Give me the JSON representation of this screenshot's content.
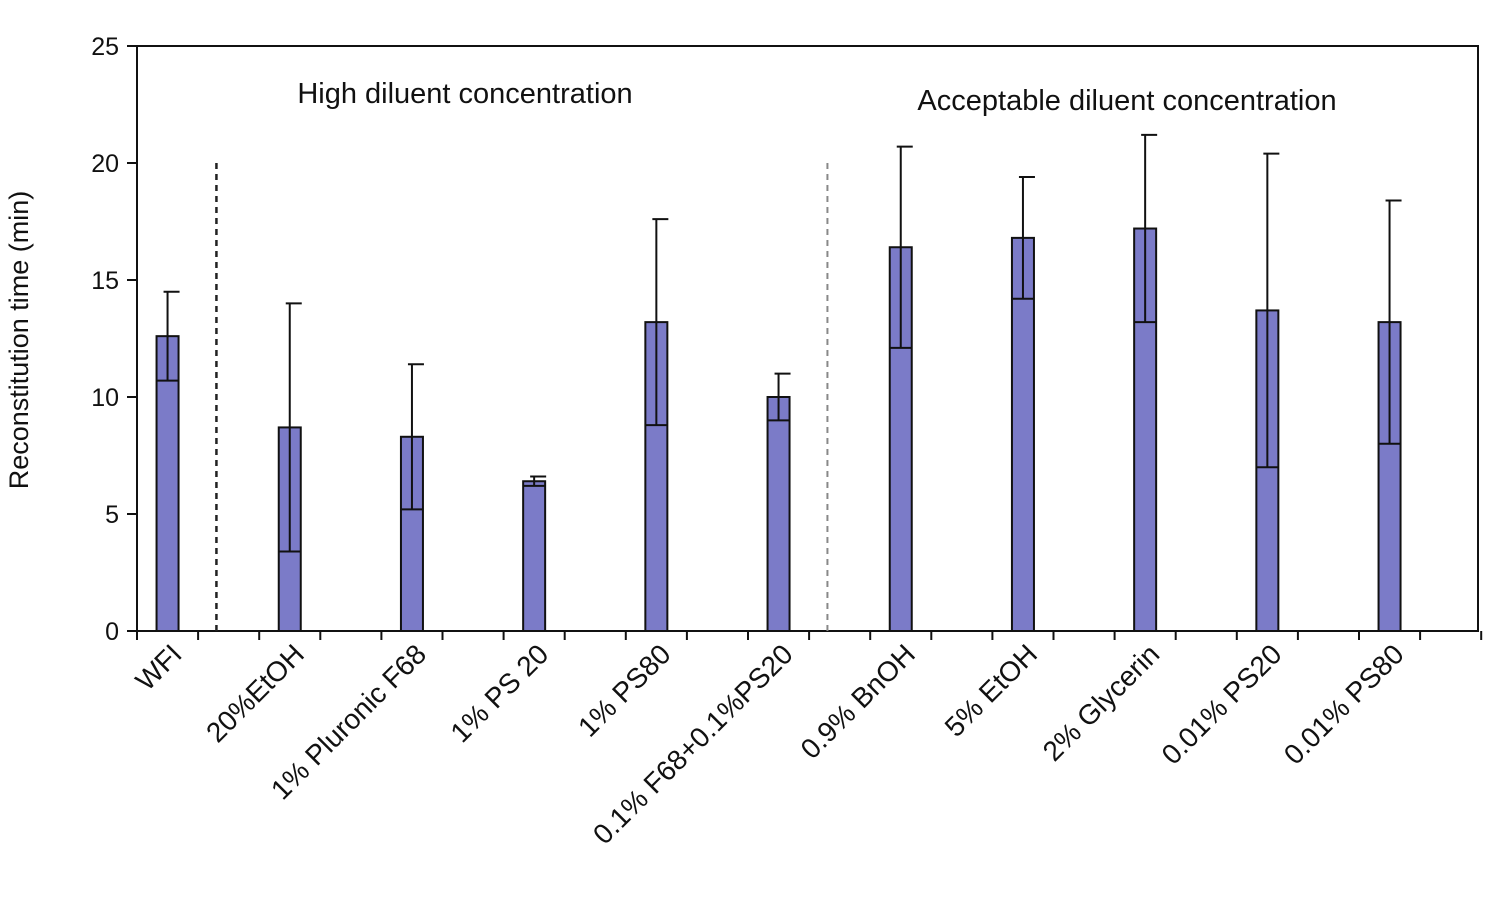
{
  "chart_data": {
    "type": "bar",
    "categories": [
      "WFI",
      "20%EtOH",
      "1% Pluronic F68",
      "1% PS 20",
      "1% PS80",
      "0.1% F68+0.1%PS20",
      "0.9% BnOH",
      "5% EtOH",
      "2% Glycerin",
      "0.01% PS20",
      "0.01% PS80"
    ],
    "values": [
      12.6,
      8.7,
      8.3,
      6.4,
      13.2,
      10.0,
      16.4,
      16.8,
      17.2,
      13.7,
      13.2
    ],
    "error": [
      1.9,
      5.3,
      3.1,
      0.2,
      4.4,
      1.0,
      4.3,
      2.6,
      4.0,
      6.7,
      5.2
    ],
    "xlabel": "",
    "ylabel": "Reconstitution time (min)",
    "ylim": [
      0,
      25
    ],
    "yticks": [
      0,
      5,
      10,
      15,
      20,
      25
    ],
    "bar_color": "#7b7bc8",
    "annotations": [
      "High diluent concentration",
      "Acceptable diluent concentration"
    ],
    "dividers": [
      {
        "after_category": "WFI",
        "style": "dashed-dark"
      },
      {
        "after_category": "0.1% F68+0.1%PS20",
        "style": "dashed-light"
      }
    ],
    "grid": false
  }
}
